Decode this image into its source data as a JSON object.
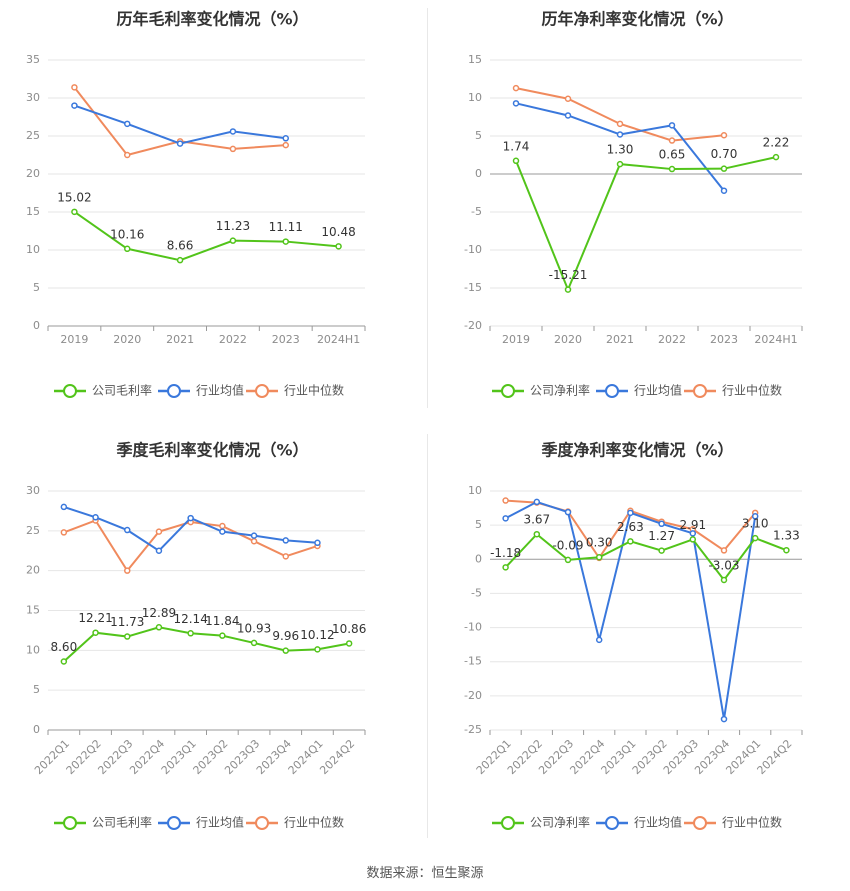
{
  "footer": {
    "source": "数据来源：恒生聚源"
  },
  "colors": {
    "company": "#52c41a",
    "industry_avg": "#3a78dc",
    "industry_median": "#f08a5d"
  },
  "chart_data": [
    {
      "id": "annual-gross",
      "type": "line",
      "title": "历年毛利率变化情况（%）",
      "categories": [
        "2019",
        "2020",
        "2021",
        "2022",
        "2023",
        "2024H1"
      ],
      "ylim": [
        0,
        35
      ],
      "yticks": [
        0,
        5,
        10,
        15,
        20,
        25,
        30,
        35
      ],
      "grid": true,
      "legend_position": "bottom",
      "series": [
        {
          "name": "公司毛利率",
          "role": "company",
          "values": [
            15.02,
            10.16,
            8.66,
            11.23,
            11.11,
            10.48
          ],
          "labels": [
            "15.02",
            "10.16",
            "8.66",
            "11.23",
            "11.11",
            "10.48"
          ]
        },
        {
          "name": "行业均值",
          "role": "industry_avg",
          "values": [
            29.0,
            26.6,
            24.0,
            25.6,
            24.7,
            null
          ]
        },
        {
          "name": "行业中位数",
          "role": "industry_median",
          "values": [
            31.4,
            22.5,
            24.3,
            23.3,
            23.8,
            null
          ]
        }
      ]
    },
    {
      "id": "annual-net",
      "type": "line",
      "title": "历年净利率变化情况（%）",
      "categories": [
        "2019",
        "2020",
        "2021",
        "2022",
        "2023",
        "2024H1"
      ],
      "ylim": [
        -20,
        15
      ],
      "yticks": [
        -20,
        -15,
        -10,
        -5,
        0,
        5,
        10,
        15
      ],
      "grid": true,
      "legend_position": "bottom",
      "series": [
        {
          "name": "公司净利率",
          "role": "company",
          "values": [
            1.74,
            -15.21,
            1.3,
            0.65,
            0.7,
            2.22
          ],
          "labels": [
            "1.74",
            "-15.21",
            "1.30",
            "0.65",
            "0.70",
            "2.22"
          ]
        },
        {
          "name": "行业均值",
          "role": "industry_avg",
          "values": [
            9.3,
            7.7,
            5.2,
            6.4,
            -2.2,
            null
          ]
        },
        {
          "name": "行业中位数",
          "role": "industry_median",
          "values": [
            11.3,
            9.9,
            6.6,
            4.4,
            5.1,
            null
          ]
        }
      ]
    },
    {
      "id": "quarterly-gross",
      "type": "line",
      "title": "季度毛利率变化情况（%）",
      "categories": [
        "2022Q1",
        "2022Q2",
        "2022Q3",
        "2022Q4",
        "2023Q1",
        "2023Q2",
        "2023Q3",
        "2023Q4",
        "2024Q1",
        "2024Q2"
      ],
      "ylim": [
        0,
        30
      ],
      "yticks": [
        0,
        5,
        10,
        15,
        20,
        25,
        30
      ],
      "grid": true,
      "legend_position": "bottom",
      "series": [
        {
          "name": "公司毛利率",
          "role": "company",
          "values": [
            8.6,
            12.21,
            11.73,
            12.89,
            12.14,
            11.84,
            10.93,
            9.96,
            10.12,
            10.86
          ],
          "labels": [
            "8.60",
            "12.21",
            "11.73",
            "12.89",
            "12.14",
            "11.84",
            "10.93",
            "9.96",
            "10.12",
            "10.86"
          ]
        },
        {
          "name": "行业均值",
          "role": "industry_avg",
          "values": [
            28.0,
            26.7,
            25.1,
            22.5,
            26.6,
            24.9,
            24.4,
            23.8,
            23.5,
            null
          ]
        },
        {
          "name": "行业中位数",
          "role": "industry_median",
          "values": [
            24.8,
            26.3,
            20.0,
            24.9,
            26.1,
            25.6,
            23.7,
            21.8,
            23.1,
            null
          ]
        }
      ]
    },
    {
      "id": "quarterly-net",
      "type": "line",
      "title": "季度净利率变化情况（%）",
      "categories": [
        "2022Q1",
        "2022Q2",
        "2022Q3",
        "2022Q4",
        "2023Q1",
        "2023Q2",
        "2023Q3",
        "2023Q4",
        "2024Q1",
        "2024Q2"
      ],
      "ylim": [
        -25,
        10
      ],
      "yticks": [
        -25,
        -20,
        -15,
        -10,
        -5,
        0,
        5,
        10
      ],
      "grid": true,
      "legend_position": "bottom",
      "series": [
        {
          "name": "公司净利率",
          "role": "company",
          "values": [
            -1.18,
            3.67,
            -0.09,
            0.3,
            2.63,
            1.27,
            2.91,
            -3.03,
            3.1,
            1.33
          ],
          "labels": [
            "-1.18",
            "3.67",
            "-0.09",
            "0.30",
            "2.63",
            "1.27",
            "2.91",
            "-3.03",
            "3.10",
            "1.33"
          ]
        },
        {
          "name": "行业均值",
          "role": "industry_avg",
          "values": [
            6.0,
            8.4,
            6.9,
            -11.8,
            6.8,
            5.2,
            3.8,
            -23.4,
            6.3,
            null
          ]
        },
        {
          "name": "行业中位数",
          "role": "industry_median",
          "values": [
            8.6,
            8.3,
            7.0,
            0.2,
            7.1,
            5.5,
            4.4,
            1.3,
            6.8,
            null
          ]
        }
      ]
    }
  ]
}
